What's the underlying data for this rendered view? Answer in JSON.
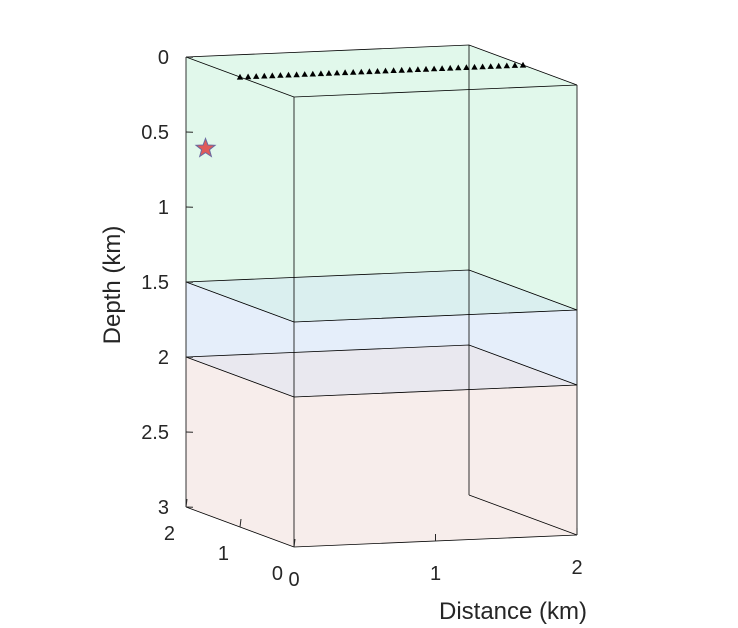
{
  "chart_data": {
    "type": "3d-layered-model",
    "xlabel": "Distance (km)",
    "zlabel": "Depth (km)",
    "x_ticks": [
      "0",
      "1",
      "2"
    ],
    "y_ticks": [
      "0",
      "1",
      "2"
    ],
    "z_ticks": [
      "0",
      "0.5",
      "1",
      "1.5",
      "2",
      "2.5",
      "3"
    ],
    "xlim": [
      0,
      2
    ],
    "ylim": [
      0,
      2
    ],
    "zlim": [
      0,
      3
    ],
    "z_reversed": true,
    "layers": [
      {
        "top_depth": 0.0,
        "bottom_depth": 1.5,
        "color": "#c9f2da"
      },
      {
        "top_depth": 1.5,
        "bottom_depth": 2.0,
        "color": "#cfe0f6"
      },
      {
        "top_depth": 2.0,
        "bottom_depth": 3.0,
        "color": "#f0dedb"
      }
    ],
    "source": {
      "x": 0.1,
      "y": 1.9,
      "depth": 0.6,
      "symbol": "star",
      "color": "#e05a5a"
    },
    "receivers": {
      "count": 36,
      "depth": 0.0,
      "y": 1.0,
      "x_start": 0.0,
      "x_end": 2.0,
      "symbol": "triangle",
      "color": "#000000"
    }
  }
}
